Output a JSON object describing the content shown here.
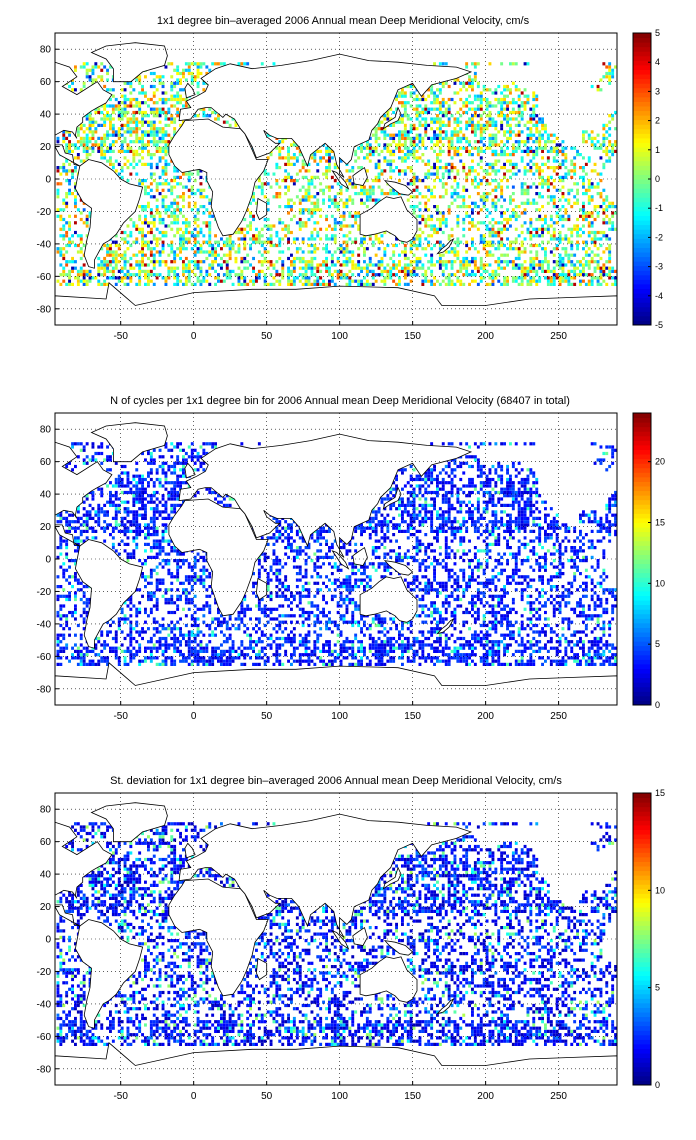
{
  "figure": {
    "panels": [
      {
        "id": "mean",
        "title": "1x1 degree bin–averaged 2006 Annual mean Deep Meridional Velocity, cm/s",
        "colorbar": {
          "min": -5,
          "max": 5,
          "ticks": [
            5,
            4,
            3,
            2,
            1,
            0,
            -1,
            -2,
            -3,
            -4,
            -5
          ]
        }
      },
      {
        "id": "count",
        "title": "N of cycles per 1x1 degree bin for 2006 Annual mean Deep Meridional Velocity (68407 in total)",
        "colorbar": {
          "min": 0,
          "max": 24,
          "ticks": [
            20,
            15,
            10,
            5,
            0
          ]
        }
      },
      {
        "id": "std",
        "title": "St. deviation for 1x1 degree bin–averaged 2006 Annual mean Deep Meridional Velocity, cm/s",
        "colorbar": {
          "min": 0,
          "max": 15,
          "ticks": [
            15,
            10,
            5,
            0
          ]
        }
      }
    ],
    "axes": {
      "xlim": [
        -95,
        290
      ],
      "ylim": [
        -90,
        90
      ],
      "xticks": [
        -50,
        0,
        50,
        100,
        150,
        200,
        250
      ],
      "yticks": [
        80,
        60,
        40,
        20,
        0,
        -20,
        -40,
        -60,
        -80
      ],
      "grid": "dotted"
    },
    "colormap": "jet"
  }
}
